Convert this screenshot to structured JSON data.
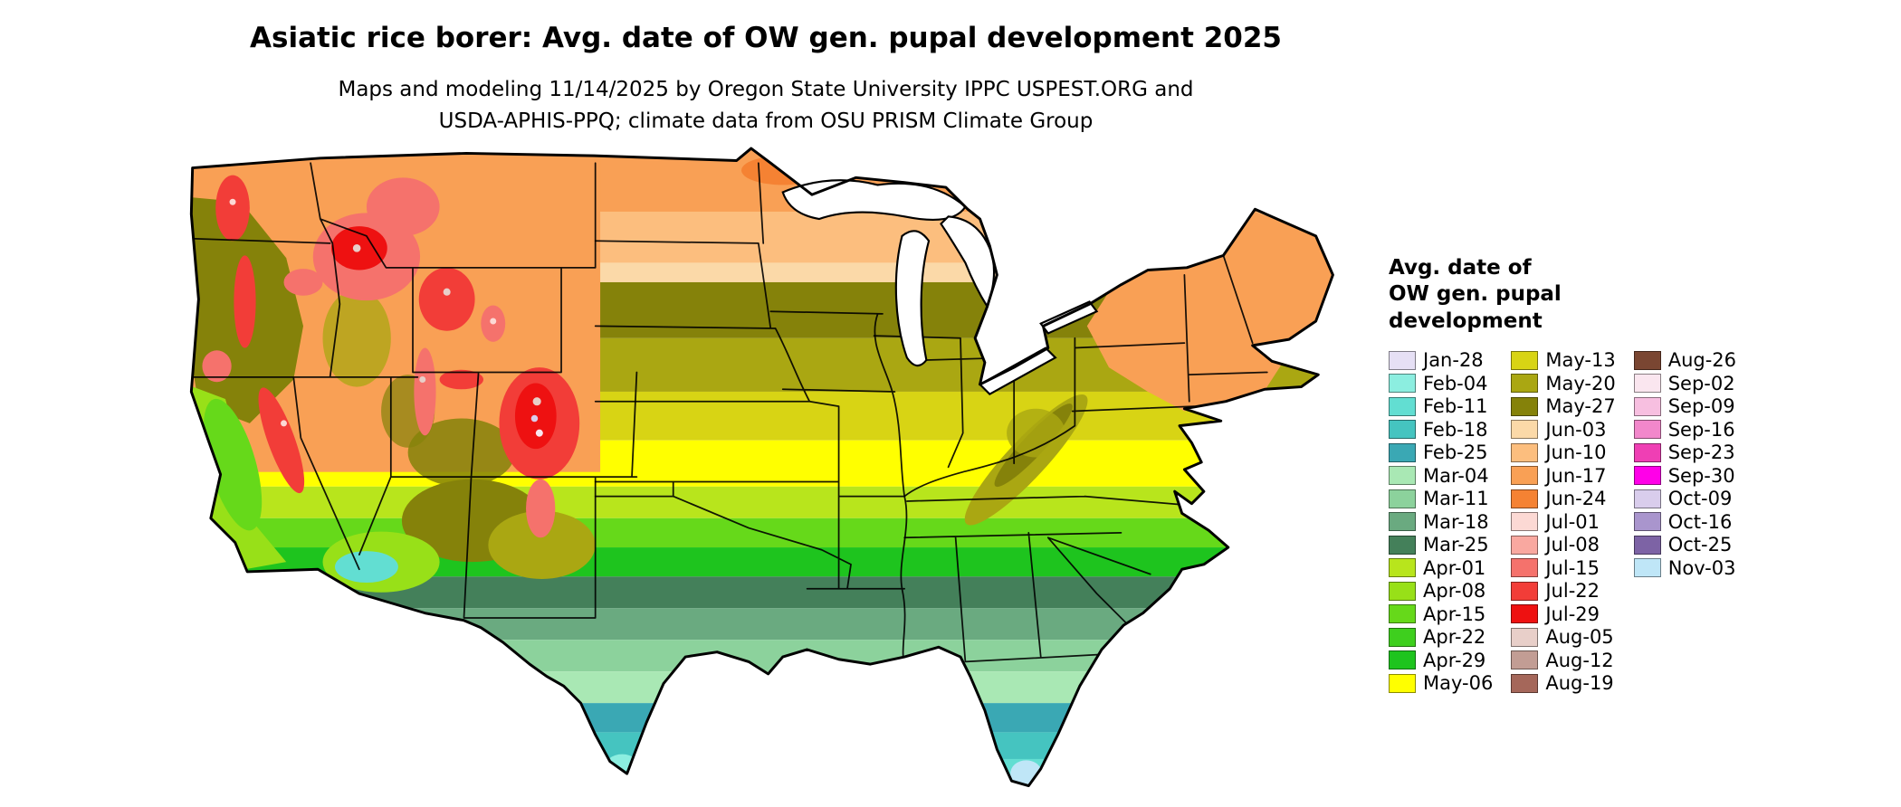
{
  "title": "Asiatic rice borer: Avg. date of OW gen. pupal development 2025",
  "subtitle_line1": "Maps and modeling 11/14/2025 by Oregon State University IPPC USPEST.ORG and",
  "subtitle_line2": "USDA-APHIS-PPQ; climate data from OSU PRISM Climate Group",
  "legend": {
    "title_lines": [
      "Avg. date of",
      "OW gen. pupal",
      "development"
    ],
    "columns": [
      15,
      15,
      10
    ],
    "entries": [
      {
        "label": "Jan-28",
        "color": "#e6e0f5"
      },
      {
        "label": "Feb-04",
        "color": "#8ceee0"
      },
      {
        "label": "Feb-11",
        "color": "#62ded2"
      },
      {
        "label": "Feb-18",
        "color": "#45c4c0"
      },
      {
        "label": "Feb-25",
        "color": "#3aa8b4"
      },
      {
        "label": "Mar-04",
        "color": "#a9e8b4"
      },
      {
        "label": "Mar-11",
        "color": "#8cd29c"
      },
      {
        "label": "Mar-18",
        "color": "#6aaa80"
      },
      {
        "label": "Mar-25",
        "color": "#44805a"
      },
      {
        "label": "Apr-01",
        "color": "#b8e51c"
      },
      {
        "label": "Apr-08",
        "color": "#98e018"
      },
      {
        "label": "Apr-15",
        "color": "#66d91a"
      },
      {
        "label": "Apr-22",
        "color": "#3ecf1e"
      },
      {
        "label": "Apr-29",
        "color": "#1ec41e"
      },
      {
        "label": "May-06",
        "color": "#ffff00"
      },
      {
        "label": "May-13",
        "color": "#d8d414"
      },
      {
        "label": "May-20",
        "color": "#aaa712"
      },
      {
        "label": "May-27",
        "color": "#85820a"
      },
      {
        "label": "Jun-03",
        "color": "#fbd9a8"
      },
      {
        "label": "Jun-10",
        "color": "#fcbe7e"
      },
      {
        "label": "Jun-17",
        "color": "#f9a055"
      },
      {
        "label": "Jun-24",
        "color": "#f58233"
      },
      {
        "label": "Jul-01",
        "color": "#fcd9d4"
      },
      {
        "label": "Jul-08",
        "color": "#f9a8a0"
      },
      {
        "label": "Jul-15",
        "color": "#f5726c"
      },
      {
        "label": "Jul-22",
        "color": "#f23d38"
      },
      {
        "label": "Jul-29",
        "color": "#ee1111"
      },
      {
        "label": "Aug-05",
        "color": "#e8cfc9"
      },
      {
        "label": "Aug-12",
        "color": "#c29d94"
      },
      {
        "label": "Aug-19",
        "color": "#a5675a"
      },
      {
        "label": "Aug-26",
        "color": "#7a4632"
      },
      {
        "label": "Sep-02",
        "color": "#fae6ef"
      },
      {
        "label": "Sep-09",
        "color": "#f7bfe0"
      },
      {
        "label": "Sep-16",
        "color": "#f287cb"
      },
      {
        "label": "Sep-23",
        "color": "#ef3fb4"
      },
      {
        "label": "Sep-30",
        "color": "#ff00e8"
      },
      {
        "label": "Oct-09",
        "color": "#d9cdec"
      },
      {
        "label": "Oct-16",
        "color": "#a995cd"
      },
      {
        "label": "Oct-25",
        "color": "#7d63a5"
      },
      {
        "label": "Nov-03",
        "color": "#bfe6f7"
      }
    ]
  }
}
